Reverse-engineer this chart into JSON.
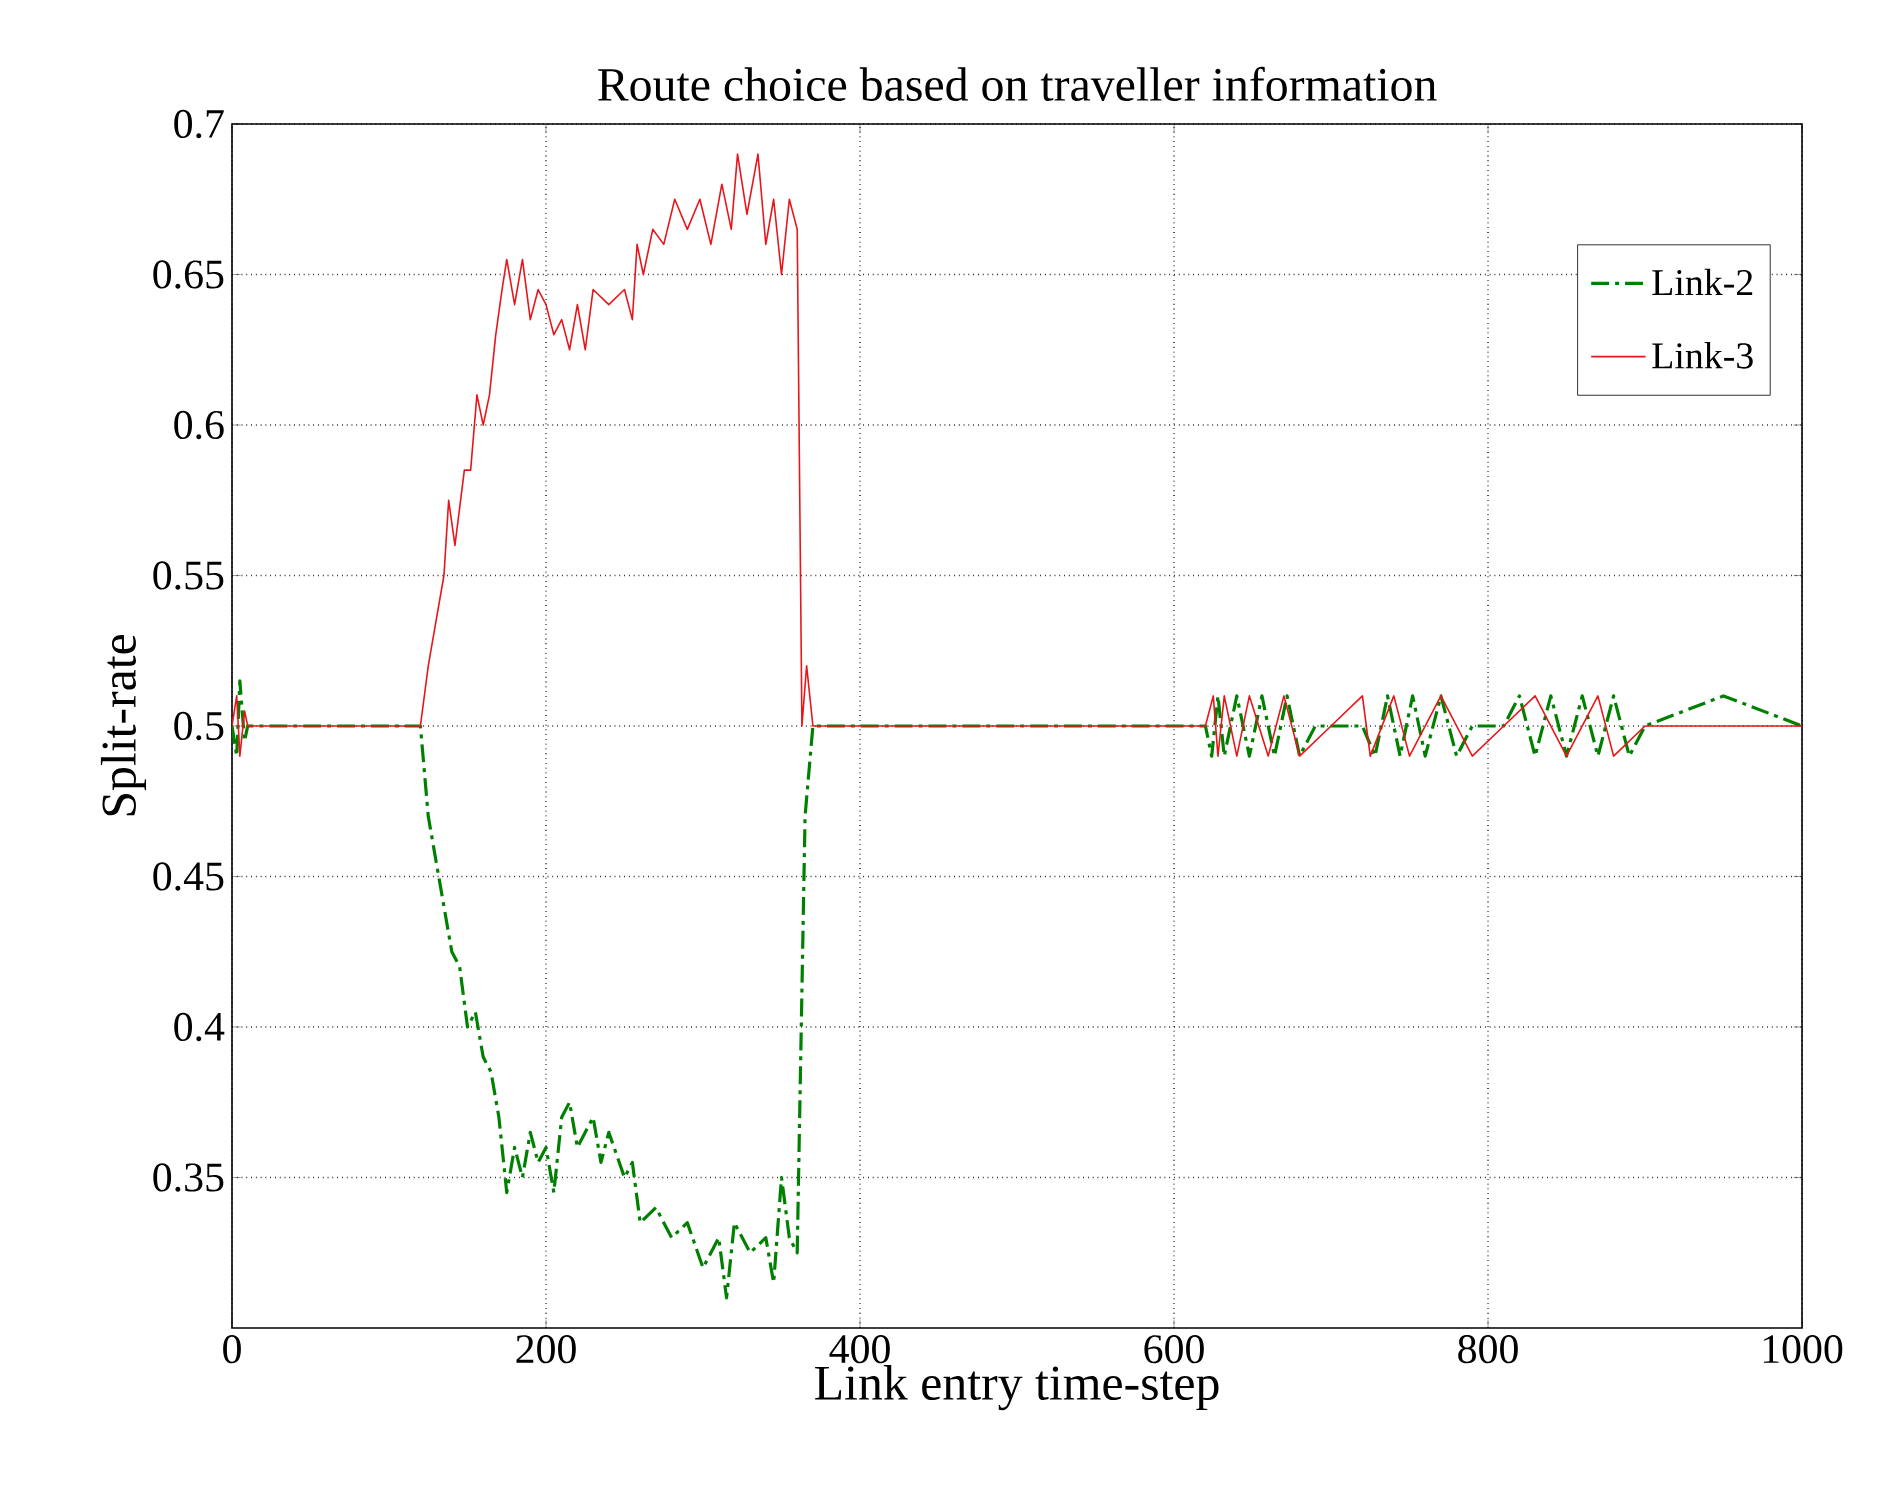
{
  "chart_data": {
    "type": "line",
    "title": "Route choice based on traveller information",
    "xlabel": "Link entry time-step",
    "ylabel": "Split-rate",
    "xlim": [
      0,
      1000
    ],
    "xticks": [
      0,
      200,
      400,
      600,
      800,
      1000
    ],
    "ylim": [
      0.3,
      0.7
    ],
    "yticks": [
      0.35,
      0.4,
      0.45,
      0.5,
      0.55,
      0.6,
      0.65,
      0.7
    ],
    "grid": true,
    "legend": "top right",
    "series": [
      {
        "name": "Link-2",
        "color": "#008000",
        "line_style": "dashdot",
        "x": [
          0,
          3,
          5,
          8,
          10,
          120,
          125,
          130,
          135,
          140,
          145,
          150,
          155,
          160,
          165,
          170,
          175,
          180,
          185,
          190,
          195,
          200,
          205,
          210,
          215,
          220,
          230,
          235,
          240,
          250,
          255,
          260,
          270,
          280,
          290,
          300,
          310,
          315,
          320,
          330,
          340,
          345,
          350,
          355,
          360,
          365,
          370,
          620,
          624,
          628,
          632,
          640,
          648,
          656,
          664,
          672,
          680,
          690,
          700,
          720,
          728,
          736,
          744,
          752,
          760,
          770,
          780,
          790,
          800,
          810,
          820,
          830,
          840,
          850,
          860,
          870,
          880,
          890,
          900,
          950,
          1000
        ],
        "values": [
          0.5,
          0.49,
          0.515,
          0.495,
          0.5,
          0.5,
          0.47,
          0.455,
          0.44,
          0.425,
          0.42,
          0.4,
          0.405,
          0.39,
          0.385,
          0.37,
          0.345,
          0.36,
          0.35,
          0.365,
          0.355,
          0.36,
          0.345,
          0.37,
          0.375,
          0.36,
          0.37,
          0.355,
          0.365,
          0.35,
          0.355,
          0.335,
          0.34,
          0.33,
          0.335,
          0.32,
          0.33,
          0.31,
          0.335,
          0.325,
          0.33,
          0.315,
          0.35,
          0.33,
          0.325,
          0.47,
          0.5,
          0.5,
          0.49,
          0.51,
          0.49,
          0.51,
          0.49,
          0.51,
          0.49,
          0.51,
          0.49,
          0.5,
          0.5,
          0.5,
          0.49,
          0.51,
          0.49,
          0.51,
          0.49,
          0.51,
          0.49,
          0.5,
          0.5,
          0.5,
          0.51,
          0.49,
          0.51,
          0.49,
          0.51,
          0.49,
          0.51,
          0.49,
          0.5,
          0.51,
          0.5
        ]
      },
      {
        "name": "Link-3",
        "color": "#e8161b",
        "line_style": "solid",
        "x": [
          0,
          3,
          5,
          8,
          10,
          120,
          125,
          130,
          135,
          138,
          142,
          148,
          152,
          156,
          160,
          164,
          168,
          172,
          175,
          180,
          185,
          190,
          195,
          200,
          205,
          210,
          215,
          220,
          225,
          230,
          240,
          250,
          255,
          258,
          262,
          268,
          275,
          282,
          290,
          298,
          305,
          312,
          318,
          322,
          328,
          335,
          340,
          345,
          350,
          355,
          360,
          363,
          366,
          370,
          620,
          625,
          628,
          632,
          640,
          648,
          660,
          670,
          680,
          700,
          720,
          725,
          740,
          750,
          770,
          790,
          810,
          830,
          850,
          870,
          880,
          900,
          950,
          1000
        ],
        "values": [
          0.5,
          0.51,
          0.49,
          0.505,
          0.5,
          0.5,
          0.52,
          0.535,
          0.55,
          0.575,
          0.56,
          0.585,
          0.585,
          0.61,
          0.6,
          0.61,
          0.63,
          0.645,
          0.655,
          0.64,
          0.655,
          0.635,
          0.645,
          0.64,
          0.63,
          0.635,
          0.625,
          0.64,
          0.625,
          0.645,
          0.64,
          0.645,
          0.635,
          0.66,
          0.65,
          0.665,
          0.66,
          0.675,
          0.665,
          0.675,
          0.66,
          0.68,
          0.665,
          0.69,
          0.67,
          0.69,
          0.66,
          0.675,
          0.65,
          0.675,
          0.665,
          0.5,
          0.52,
          0.5,
          0.5,
          0.51,
          0.49,
          0.51,
          0.49,
          0.51,
          0.49,
          0.51,
          0.49,
          0.5,
          0.51,
          0.49,
          0.51,
          0.49,
          0.51,
          0.49,
          0.5,
          0.51,
          0.49,
          0.51,
          0.49,
          0.5,
          0.5,
          0.5
        ]
      }
    ]
  }
}
